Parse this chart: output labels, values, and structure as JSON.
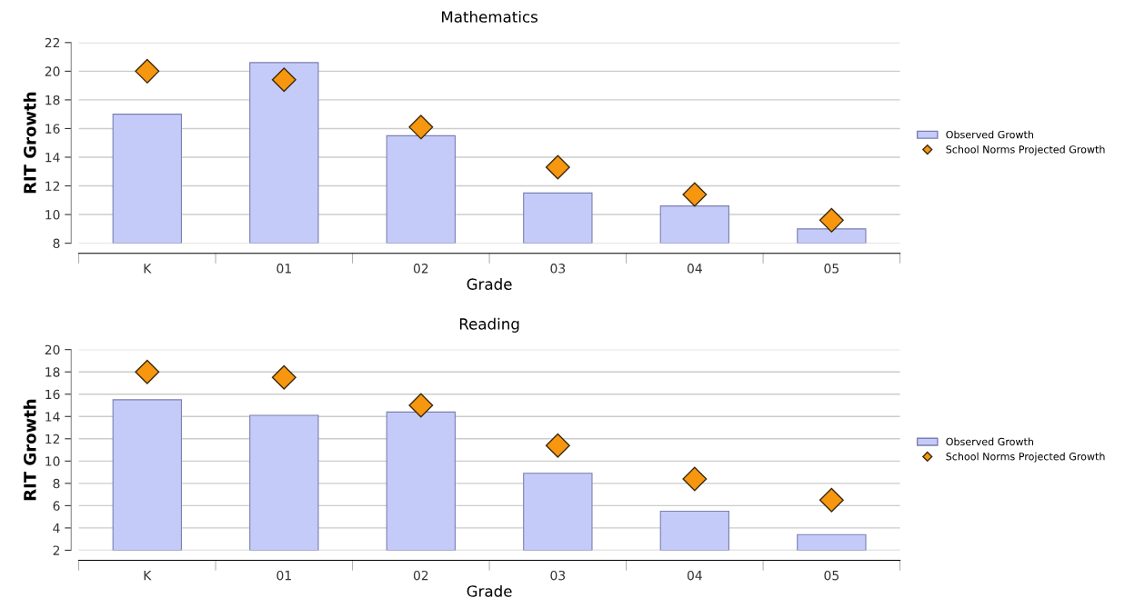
{
  "chart_data": [
    {
      "type": "bar",
      "title": "Mathematics",
      "xlabel": "Grade",
      "ylabel": "RIT Growth",
      "categories": [
        "K",
        "01",
        "02",
        "03",
        "04",
        "05"
      ],
      "ylim": [
        8,
        22
      ],
      "yticks": [
        8,
        10,
        12,
        14,
        16,
        18,
        20,
        22
      ],
      "grid": "y",
      "legend": "right",
      "series": [
        {
          "name": "Observed Growth",
          "color": "#c5cbf8",
          "values": [
            17.0,
            20.6,
            15.5,
            11.5,
            10.6,
            9.0
          ]
        },
        {
          "name": "School Norms Projected Growth",
          "type": "scatter",
          "marker": "diamond",
          "color": "#f7960f",
          "values": [
            20.0,
            19.4,
            16.1,
            13.3,
            11.4,
            9.6
          ]
        }
      ]
    },
    {
      "type": "bar",
      "title": "Reading",
      "xlabel": "Grade",
      "ylabel": "RIT Growth",
      "categories": [
        "K",
        "01",
        "02",
        "03",
        "04",
        "05"
      ],
      "ylim": [
        2,
        20
      ],
      "yticks": [
        2,
        4,
        6,
        8,
        10,
        12,
        14,
        16,
        18,
        20
      ],
      "grid": "y",
      "legend": "right",
      "series": [
        {
          "name": "Observed Growth",
          "color": "#c5cbf8",
          "values": [
            15.5,
            14.1,
            14.4,
            8.9,
            5.5,
            3.4
          ]
        },
        {
          "name": "School Norms Projected Growth",
          "type": "scatter",
          "marker": "diamond",
          "color": "#f7960f",
          "values": [
            18.0,
            17.5,
            15.0,
            11.4,
            8.4,
            6.5
          ]
        }
      ]
    }
  ]
}
